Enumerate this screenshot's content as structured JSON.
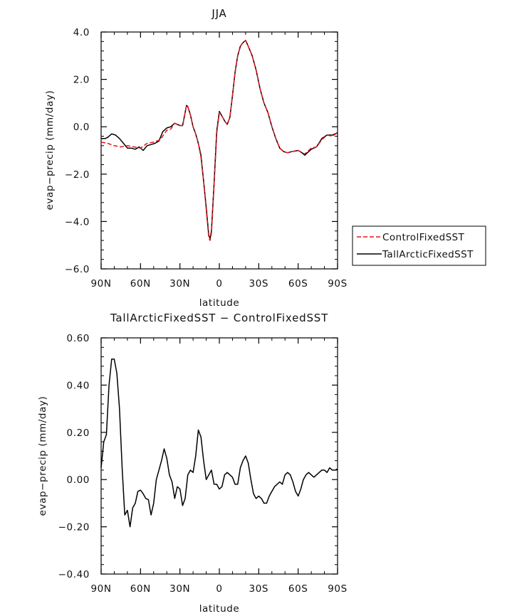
{
  "colors": {
    "control": "#e8131f",
    "tall": "#000000",
    "diff": "#000000"
  },
  "chart_data": [
    {
      "type": "line",
      "title": "JJA",
      "xlabel": "latitude",
      "ylabel": "evap−precip (mm/day)",
      "xlim": [
        -90,
        90
      ],
      "ylim": [
        -6,
        4
      ],
      "xticks": [
        -90,
        -60,
        -30,
        0,
        30,
        60,
        90
      ],
      "xtick_labels": [
        "90N",
        "60N",
        "30N",
        "0",
        "30S",
        "60S",
        "90S"
      ],
      "yticks": [
        -6,
        -4,
        -2,
        0,
        2,
        4
      ],
      "ytick_labels": [
        "−6.0",
        "−4.0",
        "−2.0",
        "0.0",
        "2.0",
        "4.0"
      ],
      "legend_position": "right",
      "series": [
        {
          "name": "ControlFixedSST",
          "style": "dashed",
          "color": "#e8131f",
          "x": [
            -90,
            -85,
            -80,
            -75,
            -70,
            -65,
            -60,
            -55,
            -50,
            -45,
            -40,
            -37,
            -34,
            -32,
            -30,
            -28,
            -26,
            -25,
            -24,
            -22,
            -20,
            -18,
            -16,
            -14,
            -12,
            -10,
            -8,
            -7,
            -6,
            -4,
            -2,
            0,
            2,
            4,
            6,
            8,
            10,
            12,
            14,
            16,
            18,
            20,
            22,
            25,
            28,
            31,
            34,
            37,
            40,
            43,
            46,
            49,
            52,
            55,
            60,
            65,
            70,
            74,
            78,
            82,
            86,
            90
          ],
          "y": [
            -0.65,
            -0.7,
            -0.8,
            -0.85,
            -0.8,
            -0.85,
            -0.9,
            -0.7,
            -0.65,
            -0.55,
            -0.15,
            -0.1,
            0.15,
            0.1,
            0.05,
            0.05,
            0.6,
            0.9,
            0.85,
            0.5,
            0.0,
            -0.3,
            -0.7,
            -1.3,
            -2.3,
            -3.5,
            -4.7,
            -4.8,
            -4.5,
            -2.5,
            -0.3,
            0.6,
            0.45,
            0.25,
            0.1,
            0.4,
            1.3,
            2.3,
            3.0,
            3.4,
            3.55,
            3.65,
            3.4,
            3.0,
            2.4,
            1.6,
            1.0,
            0.6,
            0.0,
            -0.5,
            -0.9,
            -1.05,
            -1.1,
            -1.05,
            -1.0,
            -1.15,
            -0.9,
            -0.85,
            -0.55,
            -0.35,
            -0.4,
            -0.25
          ]
        },
        {
          "name": "TallArcticFixedSST",
          "style": "solid",
          "color": "#000000",
          "x": [
            -90,
            -87,
            -85,
            -82,
            -79,
            -76,
            -73,
            -70,
            -67,
            -64,
            -61,
            -58,
            -55,
            -52,
            -49,
            -46,
            -43,
            -40,
            -37,
            -34,
            -32,
            -30,
            -28,
            -26,
            -25,
            -24,
            -22,
            -20,
            -18,
            -16,
            -14,
            -12,
            -10,
            -8,
            -7,
            -6,
            -4,
            -2,
            0,
            2,
            4,
            6,
            8,
            10,
            12,
            14,
            16,
            18,
            20,
            22,
            25,
            28,
            31,
            34,
            37,
            40,
            43,
            46,
            49,
            52,
            55,
            60,
            63,
            65,
            67,
            70,
            74,
            78,
            82,
            86,
            90
          ],
          "y": [
            -0.5,
            -0.5,
            -0.45,
            -0.3,
            -0.35,
            -0.5,
            -0.7,
            -0.9,
            -0.9,
            -0.95,
            -0.85,
            -1.0,
            -0.8,
            -0.75,
            -0.7,
            -0.6,
            -0.2,
            -0.05,
            0.0,
            0.15,
            0.1,
            0.05,
            0.05,
            0.6,
            0.9,
            0.85,
            0.5,
            0.0,
            -0.3,
            -0.7,
            -1.2,
            -2.3,
            -3.4,
            -4.6,
            -4.7,
            -4.4,
            -2.4,
            -0.2,
            0.65,
            0.45,
            0.25,
            0.1,
            0.4,
            1.3,
            2.3,
            3.0,
            3.4,
            3.55,
            3.65,
            3.4,
            3.0,
            2.4,
            1.6,
            1.0,
            0.6,
            0.0,
            -0.5,
            -0.9,
            -1.05,
            -1.1,
            -1.05,
            -1.0,
            -1.1,
            -1.2,
            -1.1,
            -0.95,
            -0.85,
            -0.5,
            -0.35,
            -0.35,
            -0.25
          ]
        }
      ]
    },
    {
      "type": "line",
      "title": "TallArcticFixedSST − ControlFixedSST",
      "xlabel": "latitude",
      "ylabel": "evap−precip (mm/day)",
      "xlim": [
        -90,
        90
      ],
      "ylim": [
        -0.4,
        0.6
      ],
      "xticks": [
        -90,
        -60,
        -30,
        0,
        30,
        60,
        90
      ],
      "xtick_labels": [
        "90N",
        "60N",
        "30N",
        "0",
        "30S",
        "60S",
        "90S"
      ],
      "yticks": [
        -0.4,
        -0.2,
        0.0,
        0.2,
        0.4,
        0.6
      ],
      "ytick_labels": [
        "−0.40",
        "−0.20",
        "0.00",
        "0.20",
        "0.40",
        "0.60"
      ],
      "series": [
        {
          "name": "",
          "style": "solid",
          "color": "#000000",
          "x": [
            -90,
            -88,
            -86,
            -84,
            -82,
            -80,
            -78,
            -76,
            -74,
            -72,
            -70,
            -68,
            -66,
            -64,
            -62,
            -60,
            -58,
            -56,
            -54,
            -52,
            -50,
            -48,
            -46,
            -44,
            -42,
            -40,
            -38,
            -36,
            -34,
            -32,
            -30,
            -28,
            -26,
            -24,
            -22,
            -20,
            -18,
            -16,
            -14,
            -12,
            -10,
            -8,
            -6,
            -4,
            -2,
            0,
            2,
            4,
            6,
            8,
            10,
            12,
            14,
            16,
            18,
            20,
            22,
            24,
            26,
            28,
            30,
            32,
            34,
            36,
            38,
            40,
            42,
            44,
            46,
            48,
            50,
            52,
            54,
            56,
            58,
            60,
            62,
            64,
            66,
            68,
            70,
            72,
            74,
            76,
            78,
            80,
            82,
            84,
            86,
            88,
            90
          ],
          "y": [
            0.05,
            0.16,
            0.19,
            0.4,
            0.51,
            0.51,
            0.45,
            0.3,
            0.05,
            -0.15,
            -0.13,
            -0.2,
            -0.12,
            -0.1,
            -0.05,
            -0.045,
            -0.06,
            -0.08,
            -0.085,
            -0.15,
            -0.1,
            0.0,
            0.04,
            0.08,
            0.13,
            0.09,
            0.02,
            -0.01,
            -0.08,
            -0.03,
            -0.04,
            -0.11,
            -0.08,
            0.02,
            0.04,
            0.03,
            0.1,
            0.21,
            0.18,
            0.08,
            0.0,
            0.02,
            0.04,
            -0.02,
            -0.02,
            -0.04,
            -0.03,
            0.02,
            0.03,
            0.02,
            0.01,
            -0.02,
            -0.02,
            0.05,
            0.08,
            0.1,
            0.07,
            0.0,
            -0.06,
            -0.08,
            -0.07,
            -0.08,
            -0.1,
            -0.1,
            -0.07,
            -0.05,
            -0.03,
            -0.02,
            -0.01,
            -0.02,
            0.02,
            0.03,
            0.02,
            -0.01,
            -0.05,
            -0.07,
            -0.04,
            0.0,
            0.02,
            0.03,
            0.02,
            0.01,
            0.02,
            0.03,
            0.04,
            0.04,
            0.03,
            0.05,
            0.04,
            0.04,
            0.045
          ]
        }
      ]
    }
  ]
}
